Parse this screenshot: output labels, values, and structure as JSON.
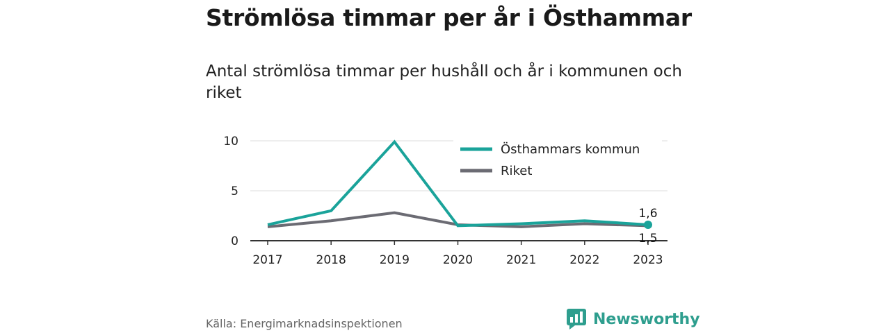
{
  "title": "Strömlösa timmar per år i Östhammar",
  "subtitle": "Antal strömlösa timmar per hushåll och år i kommunen och riket",
  "source": "Källa: Energimarknadsinspektionen",
  "brand": "Newsworthy",
  "colors": {
    "kommun": "#1aa39a",
    "riket": "#6b6b73",
    "grid": "#dddddd",
    "brand": "#2e9e8e"
  },
  "chart_data": {
    "type": "line",
    "x": [
      "2017",
      "2018",
      "2019",
      "2020",
      "2021",
      "2022",
      "2023"
    ],
    "ylim": [
      0,
      10
    ],
    "yticks": [
      0,
      5,
      10
    ],
    "legend_position": "top-right",
    "grid": true,
    "series": [
      {
        "name": "Östhammars kommun",
        "color": "#1aa39a",
        "values": [
          1.6,
          3.0,
          9.9,
          1.5,
          1.7,
          2.0,
          1.6
        ]
      },
      {
        "name": "Riket",
        "color": "#6b6b73",
        "values": [
          1.4,
          2.0,
          2.8,
          1.6,
          1.4,
          1.7,
          1.5
        ]
      }
    ],
    "data_labels": [
      "1,6",
      "1,5"
    ]
  }
}
